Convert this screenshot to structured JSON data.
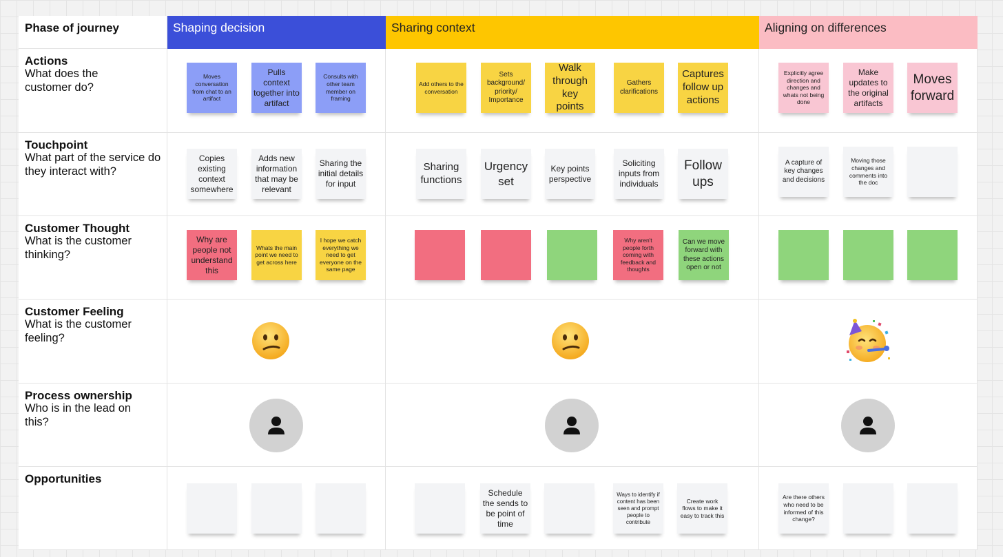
{
  "phase_label": "Phase of journey",
  "phases": [
    {
      "name": "Shaping decision",
      "color": "#3b4fd9",
      "text_color": "#ffffff"
    },
    {
      "name": "Sharing context",
      "color": "#fec600",
      "text_color": "#222222"
    },
    {
      "name": "Aligning on differences",
      "color": "#fbbcc3",
      "text_color": "#222222"
    }
  ],
  "rows": [
    {
      "title": "Actions",
      "subtitle": "What does the customer do?"
    },
    {
      "title": "Touchpoint",
      "subtitle": "What part of the service do they interact with?"
    },
    {
      "title": "Customer Thought",
      "subtitle": "What is the customer thinking?"
    },
    {
      "title": "Customer Feeling",
      "subtitle": "What is the customer feeling?"
    },
    {
      "title": "Process ownership",
      "subtitle": "Who is in the lead on this?"
    },
    {
      "title": "Opportunities",
      "subtitle": ""
    }
  ],
  "stickies": {
    "actions": [
      {
        "text": "Moves conversation from chat to an artifact",
        "color": "blue"
      },
      {
        "text": "Pulls context together into artifact",
        "color": "blue"
      },
      {
        "text": "Consults with other team member on framing",
        "color": "blue"
      },
      {
        "text": "Add others to the conversation",
        "color": "yellow"
      },
      {
        "text": "Sets background/ priority/ Importance",
        "color": "yellow"
      },
      {
        "text": "Walk through key points",
        "color": "yellow"
      },
      {
        "text": "Gathers clarifications",
        "color": "yellow"
      },
      {
        "text": "Captures follow up actions",
        "color": "yellow"
      },
      {
        "text": "Explicitly agree direction and changes and whats not being done",
        "color": "pink"
      },
      {
        "text": "Make updates to the original artifacts",
        "color": "pink"
      },
      {
        "text": "Moves forward",
        "color": "pink"
      }
    ],
    "touchpoint": [
      {
        "text": "Copies existing context somewhere",
        "color": "white"
      },
      {
        "text": "Adds new information that may be relevant",
        "color": "white"
      },
      {
        "text": "Sharing the initial details for input",
        "color": "white"
      },
      {
        "text": "Sharing functions",
        "color": "white"
      },
      {
        "text": "Urgency set",
        "color": "white"
      },
      {
        "text": "Key points perspective",
        "color": "white"
      },
      {
        "text": "Soliciting inputs from individuals",
        "color": "white"
      },
      {
        "text": "Follow ups",
        "color": "white"
      },
      {
        "text": "A capture of key changes and decisions",
        "color": "white"
      },
      {
        "text": "Moving those changes and comments into the doc",
        "color": "white"
      },
      {
        "text": "",
        "color": "white"
      }
    ],
    "thought": [
      {
        "text": "Why are people not understand this",
        "color": "red"
      },
      {
        "text": "Whats the main point we need to get across here",
        "color": "yellow"
      },
      {
        "text": "I hope we catch everything we need to get everyone on the same page",
        "color": "yellow"
      },
      {
        "text": "",
        "color": "red"
      },
      {
        "text": "",
        "color": "red"
      },
      {
        "text": "",
        "color": "green"
      },
      {
        "text": "Why aren't people forth coming with feedback and thoughts",
        "color": "red"
      },
      {
        "text": "Can we move forward with these actions open or not",
        "color": "green"
      },
      {
        "text": "",
        "color": "green"
      },
      {
        "text": "",
        "color": "green"
      },
      {
        "text": "",
        "color": "green"
      }
    ],
    "opportunities": [
      {
        "text": "",
        "color": "white"
      },
      {
        "text": "",
        "color": "white"
      },
      {
        "text": "",
        "color": "white"
      },
      {
        "text": "",
        "color": "white"
      },
      {
        "text": "Schedule the sends to be point of time",
        "color": "white"
      },
      {
        "text": "",
        "color": "white"
      },
      {
        "text": "Ways to identify if content has been seen and prompt people to contribute",
        "color": "white"
      },
      {
        "text": "Create work flows to make it easy to track this",
        "color": "white"
      },
      {
        "text": "Are there others who need to be informed of this change?",
        "color": "white"
      },
      {
        "text": "",
        "color": "white"
      },
      {
        "text": "",
        "color": "white"
      }
    ]
  },
  "feelings": [
    {
      "icon": "confused-face-icon"
    },
    {
      "icon": "confused-face-icon"
    },
    {
      "icon": "party-face-icon"
    }
  ],
  "owners": [
    {
      "icon": "user-avatar-icon"
    },
    {
      "icon": "user-avatar-icon"
    },
    {
      "icon": "user-avatar-icon"
    }
  ]
}
